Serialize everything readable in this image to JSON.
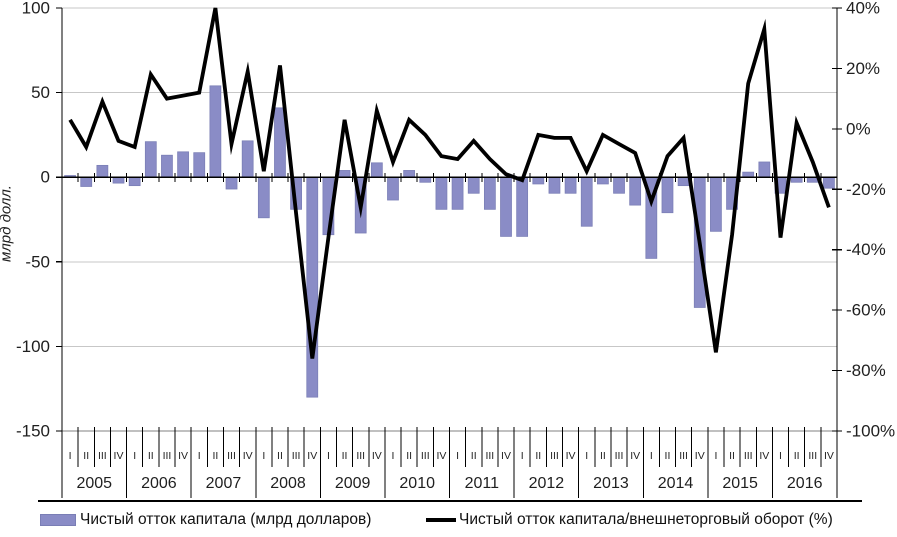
{
  "chart_data": {
    "type": "combo-bar-line",
    "title": "",
    "categories_years": [
      "2005",
      "2006",
      "2007",
      "2008",
      "2009",
      "2010",
      "2011",
      "2012",
      "2013",
      "2014",
      "2015",
      "2016"
    ],
    "quarter_labels": [
      "I",
      "II",
      "III",
      "IV"
    ],
    "series": [
      {
        "name": "Чистый отток капитала (млрд  долларов)",
        "type": "bar",
        "axis": "left",
        "values": [
          1,
          -5.5,
          7,
          -3.5,
          -5,
          21,
          13,
          15,
          14.5,
          54,
          -7,
          21.5,
          -24,
          41,
          -19,
          -130,
          -34,
          4,
          -33,
          8.5,
          -13.5,
          4,
          -3,
          -19,
          -19,
          -9.5,
          -19,
          -35,
          -35,
          -4,
          -9.5,
          -9.5,
          -29,
          -4,
          -9.5,
          -16.5,
          -48,
          -21,
          -5,
          -77,
          -32,
          -19,
          3,
          9,
          -9.5,
          -3,
          -3,
          -6.5
        ]
      },
      {
        "name": "Чистый отток капитала/внешнеторговый оборот (%)",
        "type": "line",
        "axis": "right",
        "values": [
          3,
          -6,
          9,
          -4,
          -6,
          18,
          10,
          11,
          12,
          40,
          -5,
          19,
          -14,
          21,
          -28,
          -76,
          -36,
          3,
          -26,
          6,
          -11,
          3,
          -2,
          -9,
          -10,
          -4,
          -10,
          -15,
          -17,
          -2,
          -3,
          -3,
          -14,
          -2,
          -5,
          -8,
          -24,
          -9,
          -3,
          -38,
          -74,
          -35,
          15,
          33,
          -36,
          2,
          -11,
          -26
        ]
      }
    ],
    "left_axis": {
      "label": "млрд долл.",
      "min": -150,
      "max": 100,
      "ticks": [
        100,
        50,
        0,
        -50,
        -100,
        -150
      ]
    },
    "right_axis": {
      "min": -100,
      "max": 40,
      "ticks_percent": [
        40,
        20,
        0,
        -20,
        -40,
        -60,
        -80,
        -100
      ],
      "tick_suffix": "%"
    },
    "grid": "horizontal",
    "legend_position": "bottom",
    "colors": {
      "bar": "#8a8cc6",
      "bar_border": "#7a7eb5",
      "line": "#000000",
      "grid": "#c7c7c7",
      "axis": "#000000",
      "category_axis": "#808080",
      "text": "#1f1f1f"
    }
  },
  "legend": {
    "bars": "Чистый отток капитала (млрд  долларов)",
    "line": "Чистый отток капитала/внешнеторговый оборот (%)"
  }
}
